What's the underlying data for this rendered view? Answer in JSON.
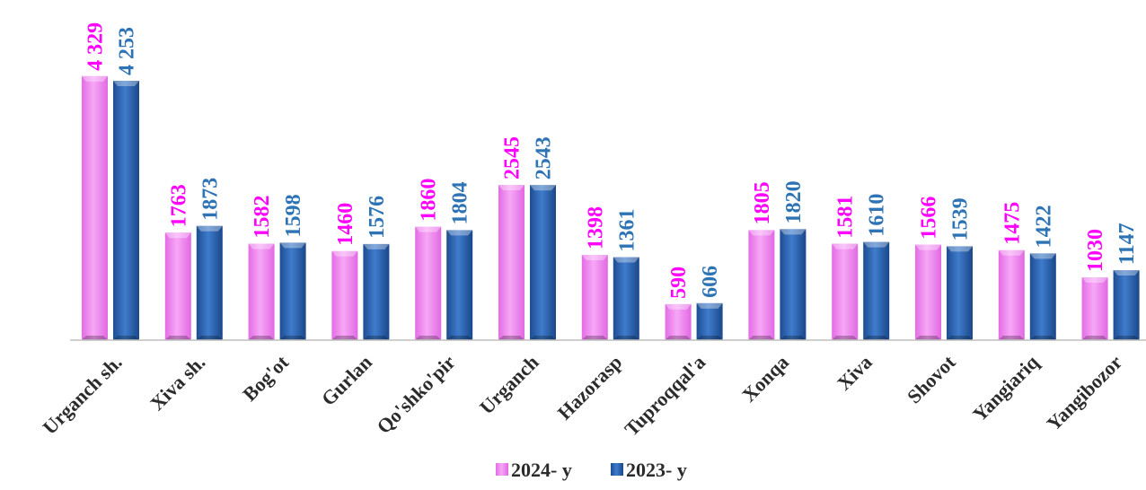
{
  "chart_data": {
    "type": "bar",
    "categories": [
      "Urganch sh.",
      "Xiva sh.",
      "Bog'ot",
      "Gurlan",
      "Qo'shko'pir",
      "Urganch",
      "Hazorasp",
      "Tuproqqal'a",
      "Xonqa",
      "Xiva",
      "Shovot",
      "Yangiariq",
      "Yangibozor"
    ],
    "series": [
      {
        "name": "2024- y",
        "values": [
          4329,
          1763,
          1582,
          1460,
          1860,
          2545,
          1398,
          590,
          1805,
          1581,
          1566,
          1475,
          1030
        ],
        "labels": [
          "4 329",
          "1763",
          "1582",
          "1460",
          "1860",
          "2545",
          "1398",
          "590",
          "1805",
          "1581",
          "1566",
          "1475",
          "1030"
        ],
        "color": "#ef7ff0",
        "label_color": "#ff00ff"
      },
      {
        "name": "2023- y",
        "values": [
          4253,
          1873,
          1598,
          1576,
          1804,
          2543,
          1361,
          606,
          1820,
          1610,
          1539,
          1422,
          1147
        ],
        "labels": [
          "4 253",
          "1873",
          "1598",
          "1576",
          "1804",
          "2543",
          "1361",
          "606",
          "1820",
          "1610",
          "1539",
          "1422",
          "1147"
        ],
        "color": "#2a5fa8",
        "label_color": "#2e74b5"
      }
    ],
    "ylim": [
      0,
      4400
    ],
    "grid": false,
    "legend_position": "bottom"
  }
}
